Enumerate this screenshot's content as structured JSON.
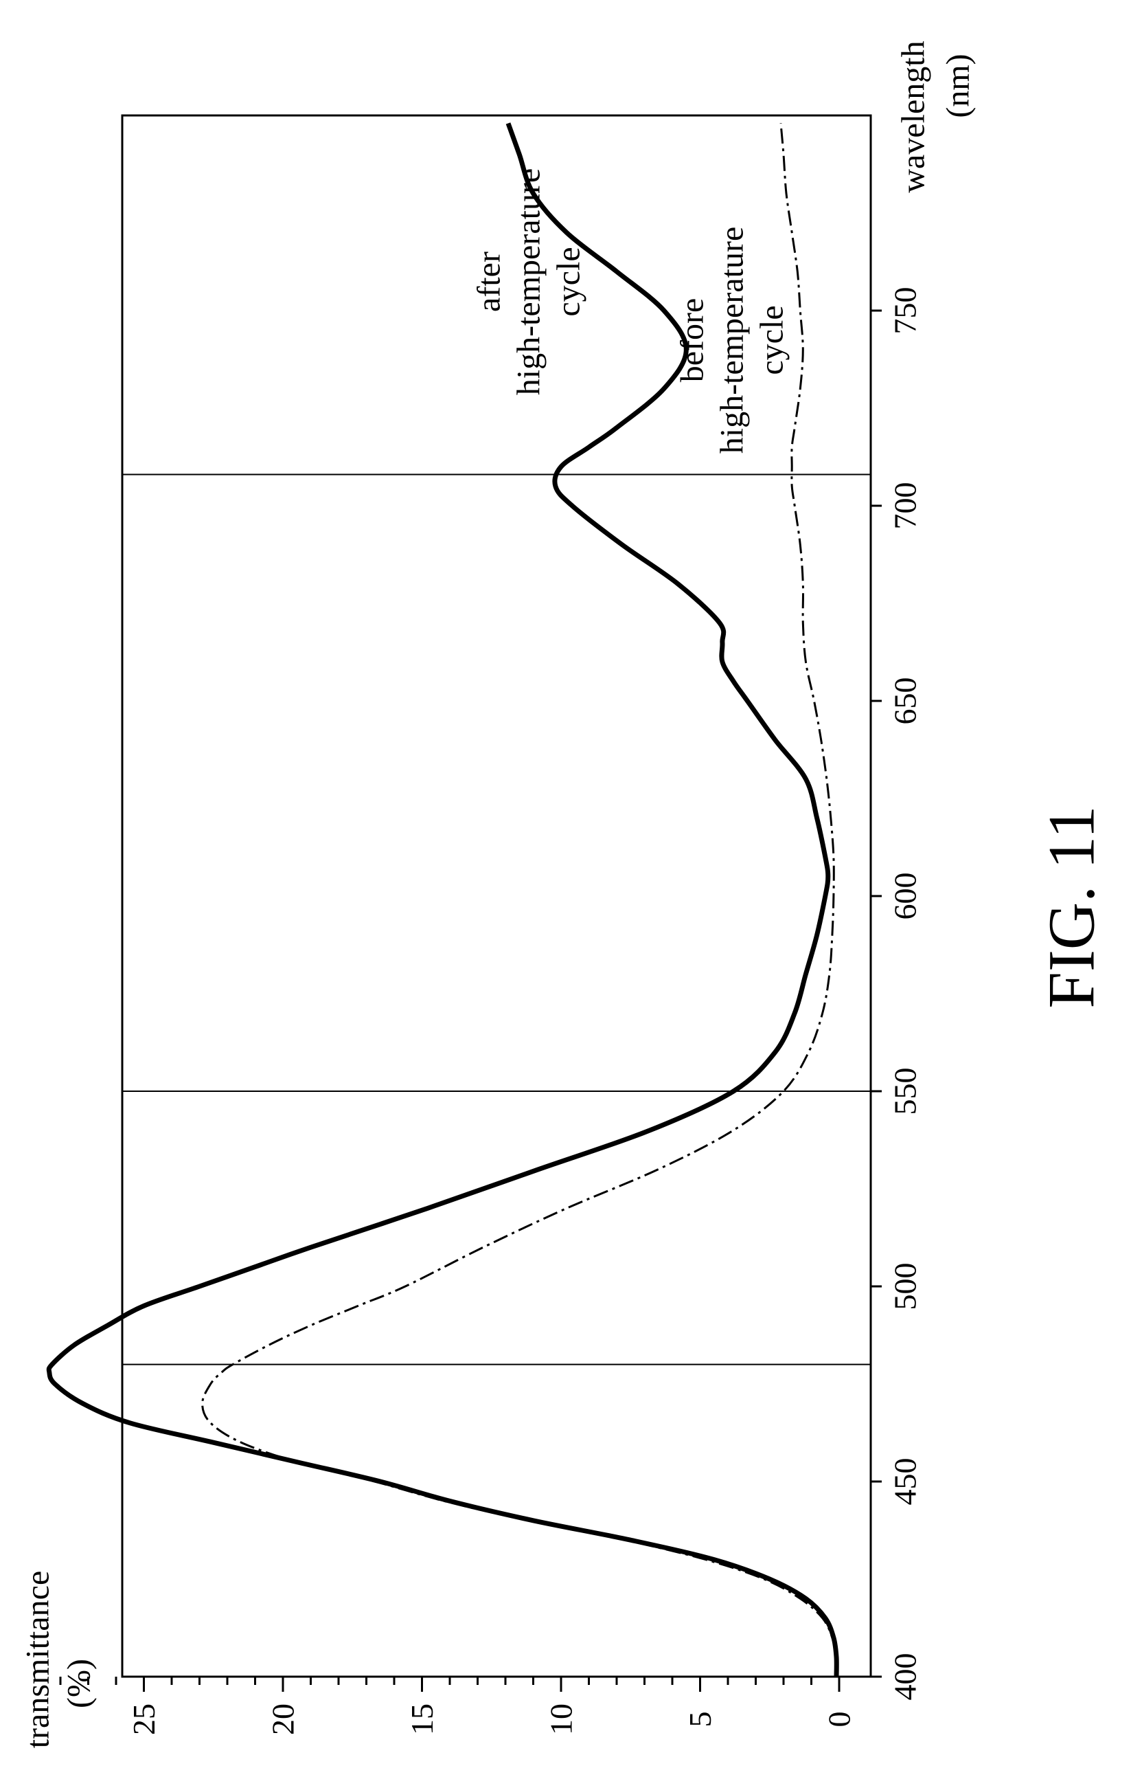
{
  "chart_data": {
    "type": "line",
    "orientation": "rotated-90-ccw",
    "caption": "FIG. 11",
    "xlabel": {
      "line1": "wavelength",
      "line2": "(nm)"
    },
    "ylabel": {
      "line1": "transmittance",
      "line2": "(%)"
    },
    "xlim": [
      400,
      800
    ],
    "ylim": [
      0,
      29
    ],
    "xticks": [
      400,
      450,
      500,
      550,
      600,
      650,
      700,
      750
    ],
    "yticks": [
      0,
      5,
      10,
      15,
      20,
      25
    ],
    "vertical_reference_lines": [
      480,
      550,
      708
    ],
    "grid": false,
    "series": [
      {
        "name": "after high-temperature cycle",
        "label_lines": [
          "after",
          "high-temperature",
          "cycle"
        ],
        "style": "solid-thick",
        "x": [
          400,
          405,
          410,
          415,
          420,
          425,
          430,
          435,
          440,
          445,
          450,
          455,
          460,
          465,
          470,
          475,
          478,
          480,
          485,
          490,
          495,
          500,
          505,
          510,
          520,
          530,
          540,
          550,
          560,
          570,
          580,
          590,
          600,
          605,
          610,
          620,
          630,
          640,
          650,
          655,
          660,
          665,
          670,
          680,
          690,
          700,
          705,
          710,
          715,
          720,
          730,
          740,
          750,
          760,
          770,
          780,
          790,
          798
        ],
        "y": [
          0.1,
          0.1,
          0.2,
          0.5,
          1.2,
          2.5,
          4.5,
          7.5,
          11.0,
          14.0,
          16.5,
          19.5,
          22.5,
          25.5,
          27.2,
          28.2,
          28.4,
          28.3,
          27.5,
          26.3,
          25.0,
          23.0,
          21.0,
          19.0,
          14.8,
          10.8,
          6.8,
          3.8,
          2.3,
          1.6,
          1.2,
          0.8,
          0.5,
          0.4,
          0.5,
          0.8,
          1.2,
          2.3,
          3.3,
          3.8,
          4.2,
          4.2,
          4.3,
          5.8,
          7.8,
          9.6,
          10.2,
          10.0,
          9.0,
          8.0,
          6.3,
          5.5,
          6.3,
          8.0,
          9.8,
          11.0,
          11.5,
          11.9
        ]
      },
      {
        "name": "before high-temperature cycle",
        "label_lines": [
          "before",
          "high-temperature",
          "cycle"
        ],
        "style": "dash-dot-thin",
        "x": [
          400,
          405,
          410,
          415,
          420,
          425,
          430,
          435,
          440,
          445,
          450,
          455,
          460,
          465,
          470,
          475,
          478,
          480,
          485,
          490,
          495,
          500,
          510,
          520,
          530,
          540,
          550,
          560,
          570,
          580,
          590,
          600,
          610,
          620,
          630,
          640,
          650,
          660,
          670,
          680,
          690,
          700,
          705,
          710,
          715,
          720,
          730,
          740,
          750,
          760,
          770,
          780,
          790,
          798
        ],
        "y": [
          0.1,
          0.1,
          0.25,
          0.6,
          1.4,
          2.7,
          4.8,
          7.7,
          11.2,
          14.2,
          16.7,
          19.5,
          21.5,
          22.6,
          22.9,
          22.6,
          22.2,
          21.8,
          20.5,
          19.0,
          17.3,
          15.6,
          12.8,
          9.8,
          6.5,
          3.8,
          2.0,
          1.1,
          0.6,
          0.35,
          0.25,
          0.2,
          0.2,
          0.3,
          0.45,
          0.65,
          0.9,
          1.2,
          1.3,
          1.3,
          1.4,
          1.6,
          1.7,
          1.7,
          1.7,
          1.6,
          1.4,
          1.3,
          1.4,
          1.5,
          1.7,
          1.9,
          2.0,
          2.1
        ]
      }
    ]
  }
}
